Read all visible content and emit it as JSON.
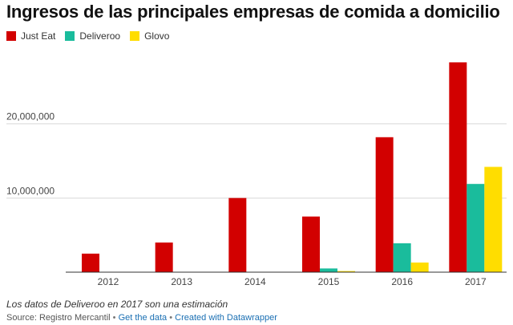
{
  "chart_data": {
    "type": "bar",
    "title": "Ingresos de las principales empresas de comida a domicilio",
    "xlabel": "",
    "ylabel": "",
    "categories": [
      "2012",
      "2013",
      "2014",
      "2015",
      "2016",
      "2017"
    ],
    "series": [
      {
        "name": "Just Eat",
        "color": "#d20000",
        "values": [
          2500000,
          4000000,
          10000000,
          7500000,
          18200000,
          28300000
        ]
      },
      {
        "name": "Deliveroo",
        "color": "#1abc9c",
        "values": [
          0,
          0,
          0,
          500000,
          3900000,
          11900000
        ]
      },
      {
        "name": "Glovo",
        "color": "#ffdd00",
        "values": [
          0,
          0,
          0,
          150000,
          1300000,
          14200000
        ]
      }
    ],
    "yticks": [
      {
        "value": 10000000,
        "label": "10,000,000"
      },
      {
        "value": 20000000,
        "label": "20,000,000"
      }
    ],
    "ylim": [
      0,
      28500000
    ],
    "grid": true,
    "legend": "top-left"
  },
  "note": "Los datos de Deliveroo en 2017 son una estimación",
  "footer": {
    "source": "Source: Registro Mercantil",
    "sep1": "•",
    "get_data": "Get the data",
    "sep2": "•",
    "created": "Created with Datawrapper"
  }
}
